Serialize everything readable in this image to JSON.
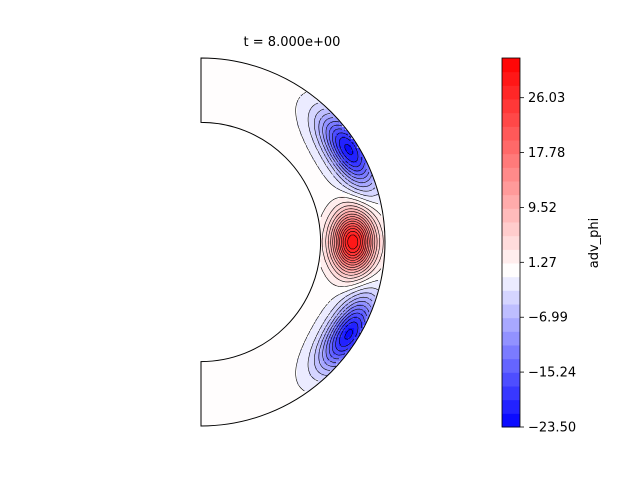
{
  "chart_data": {
    "type": "contour",
    "title": "t = 8.000e+00",
    "colorbar": {
      "label": "adv_phi",
      "range": [
        -23.5,
        32.0
      ],
      "tick_labels": [
        "26.03",
        "17.78",
        "9.52",
        "1.27",
        "−6.99",
        "−15.24",
        "−23.50"
      ],
      "tick_values": [
        26.03,
        17.78,
        9.52,
        1.27,
        -6.99,
        -15.24,
        -23.5
      ],
      "levels": [
        -23.5,
        -21.44,
        -19.37,
        -17.31,
        -15.24,
        -13.18,
        -11.11,
        -9.05,
        -6.99,
        -4.92,
        -2.86,
        -0.79,
        1.27,
        3.33,
        5.4,
        7.46,
        9.52,
        11.59,
        13.65,
        15.71,
        17.78,
        19.84,
        21.9,
        23.97,
        26.03,
        28.1,
        30.16,
        32.0
      ],
      "colormap": "bwr"
    },
    "domain": {
      "geometry": "spherical shell meridional slice",
      "inner_radius_ratio": 0.65,
      "theta_range_deg": [
        0,
        180
      ]
    },
    "features": [
      {
        "name": "positive-core",
        "value_peak": 30.0,
        "theta_deg": 90,
        "r_frac": 0.5
      },
      {
        "name": "negative-north-lobe",
        "value_peak": -22.0,
        "theta_deg": 58,
        "r_frac": 0.85
      },
      {
        "name": "negative-south-lobe",
        "value_peak": -22.0,
        "theta_deg": 122,
        "r_frac": 0.85
      }
    ],
    "colors": {
      "min": "#0000ff",
      "mid": "#ffffff",
      "max": "#ff0000"
    }
  }
}
